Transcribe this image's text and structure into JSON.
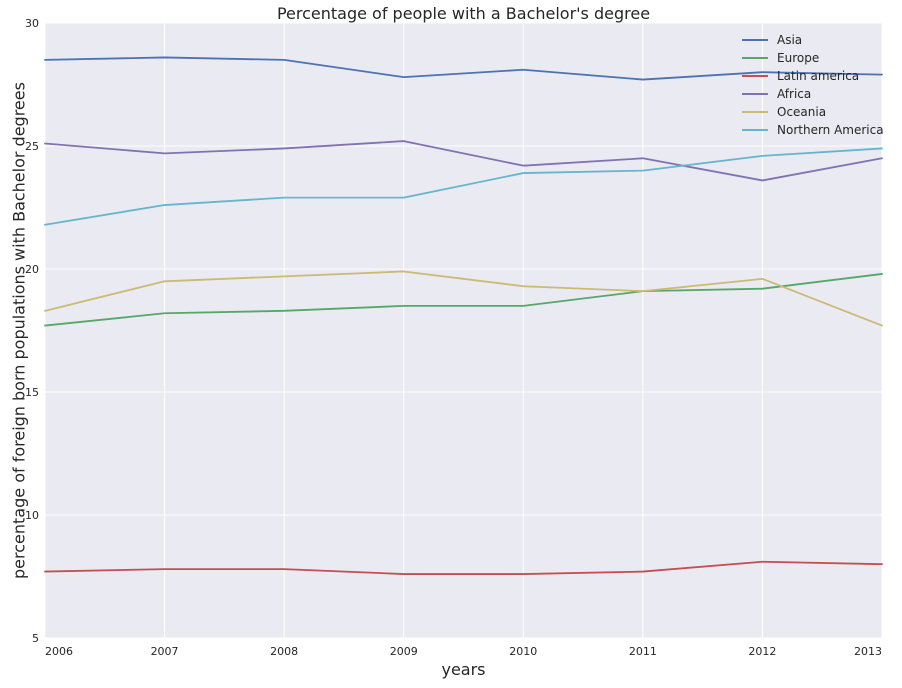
{
  "chart_data": {
    "type": "line",
    "title": "Percentage of people with a Bachelor's degree",
    "xlabel": "years",
    "ylabel": "percentage of foreign born populations with Bachelor degrees",
    "x": [
      2006,
      2007,
      2008,
      2009,
      2010,
      2011,
      2012,
      2013
    ],
    "x_tick_labels": [
      "2006",
      "2007",
      "2008",
      "2009",
      "2010",
      "2011",
      "2012",
      "2013"
    ],
    "xlim": [
      2006,
      2013
    ],
    "ylim": [
      5,
      30
    ],
    "y_ticks": [
      5,
      10,
      15,
      20,
      25,
      30
    ],
    "y_tick_labels": [
      "5",
      "10",
      "15",
      "20",
      "25",
      "30"
    ],
    "grid": true,
    "background_color": "#EAEAF2",
    "legend_position": "top-right",
    "series": [
      {
        "name": "Asia",
        "color": "#4C72B0",
        "values": [
          28.5,
          28.6,
          28.5,
          27.8,
          28.1,
          27.7,
          28.0,
          27.9
        ]
      },
      {
        "name": "Europe",
        "color": "#55A868",
        "values": [
          17.7,
          18.2,
          18.3,
          18.5,
          18.5,
          19.1,
          19.2,
          19.8
        ]
      },
      {
        "name": "Latin america",
        "color": "#C44E52",
        "values": [
          7.7,
          7.8,
          7.8,
          7.6,
          7.6,
          7.7,
          8.1,
          8.0
        ]
      },
      {
        "name": "Africa",
        "color": "#8172B2",
        "values": [
          25.1,
          24.7,
          24.9,
          25.2,
          24.2,
          24.5,
          23.6,
          24.5
        ]
      },
      {
        "name": "Oceania",
        "color": "#CCB974",
        "values": [
          18.3,
          19.5,
          19.7,
          19.9,
          19.3,
          19.1,
          19.6,
          17.7
        ]
      },
      {
        "name": "Northern America",
        "color": "#64B5CD",
        "values": [
          21.8,
          22.6,
          22.9,
          22.9,
          23.9,
          24.0,
          24.6,
          24.9
        ]
      }
    ]
  }
}
